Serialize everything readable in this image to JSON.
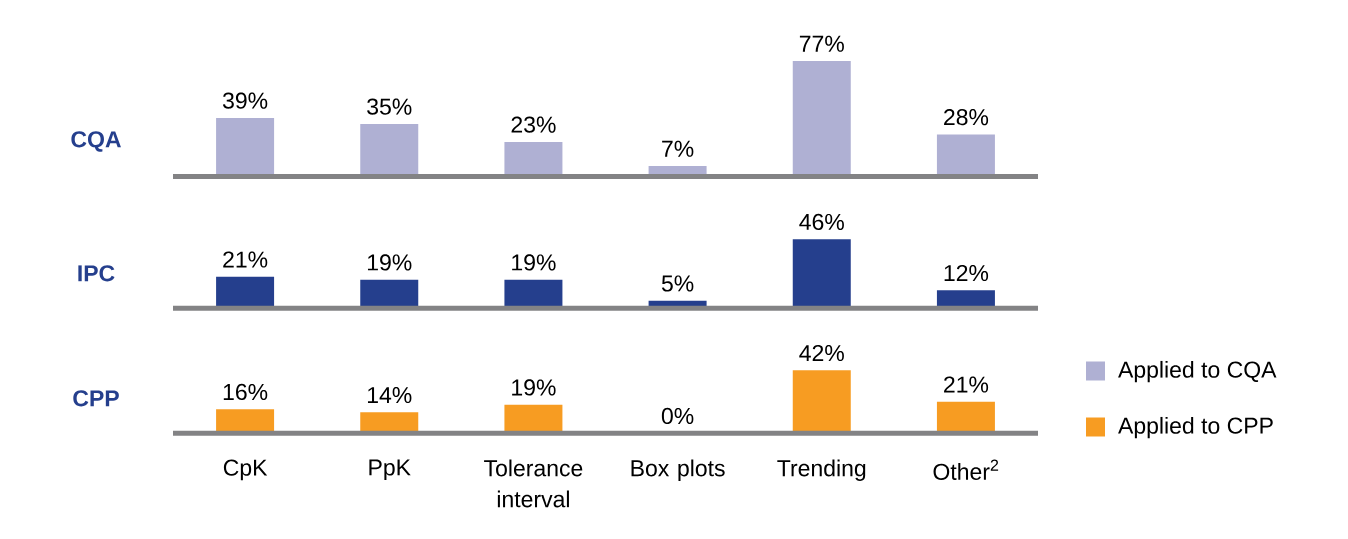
{
  "chart_data": [
    {
      "type": "bar",
      "ylabel": "CQA",
      "categories": [
        null,
        null,
        null,
        null,
        null,
        null
      ],
      "series": [
        {
          "name": "Applied to CQA",
          "color": "#afb0d3",
          "values": [
            39,
            35,
            23,
            7,
            77,
            28
          ],
          "value_labels": [
            "39%",
            "35%",
            "23%",
            "7%",
            "77%",
            "28%"
          ]
        }
      ],
      "tick_labels": false,
      "legend": "bottom right"
    },
    {
      "type": "bar",
      "ylabel": "IPC",
      "categories": [
        null,
        null,
        null,
        null,
        null,
        null
      ],
      "series": [
        {
          "color": "#253f8d",
          "values": [
            21,
            19,
            19,
            5,
            46,
            12
          ],
          "value_labels": [
            "21%",
            "19%",
            "19%",
            "5%",
            "46%",
            "12%"
          ]
        }
      ],
      "tick_labels": false
    },
    {
      "type": "bar",
      "ylabel": "CPP",
      "categories": [
        "CpK",
        "PpK",
        "Tolerance interval",
        "Box plots",
        "Trending",
        "Other$^{2}$"
      ],
      "series": [
        {
          "name": "Applied to CPP",
          "color": "#f79c22",
          "values": [
            16,
            14,
            19,
            0,
            42,
            21
          ],
          "value_labels": [
            "16%",
            "14%",
            "19%",
            "0%",
            "42%",
            "21%"
          ]
        }
      ],
      "tick_labels": "x",
      "legend": "right"
    }
  ]
}
